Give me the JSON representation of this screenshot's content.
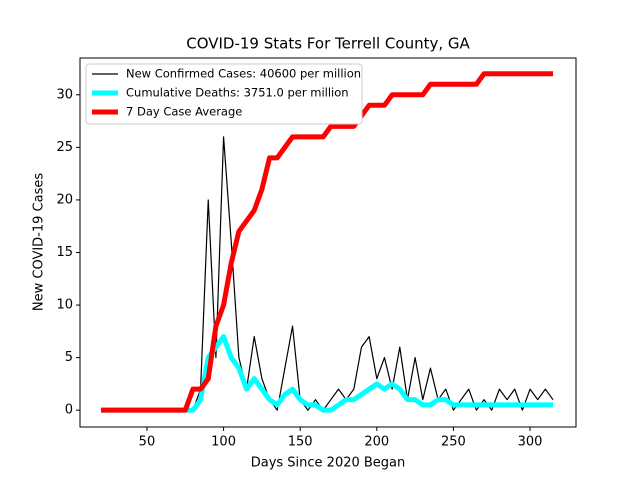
{
  "chart_data": {
    "type": "line",
    "title": "COVID-19 Stats For Terrell County, GA",
    "x_label": "Days Since 2020 Began",
    "y_label": "New COVID-19 Cases",
    "x": [
      20,
      25,
      30,
      35,
      40,
      45,
      50,
      55,
      60,
      65,
      70,
      75,
      80,
      85,
      90,
      95,
      100,
      105,
      110,
      115,
      120,
      125,
      130,
      135,
      140,
      145,
      150,
      155,
      160,
      165,
      170,
      175,
      180,
      185,
      190,
      195,
      200,
      205,
      210,
      215,
      220,
      225,
      230,
      235,
      240,
      245,
      250,
      255,
      260,
      265,
      270,
      275,
      280,
      285,
      290,
      295,
      300,
      305,
      310,
      315
    ],
    "series": [
      {
        "name": "New Confirmed Cases: 40600 per million",
        "color": "black",
        "width": 1.2,
        "values": [
          0,
          0,
          0,
          0,
          0,
          0,
          0,
          0,
          0,
          0,
          0,
          0,
          0,
          2,
          20,
          5,
          26,
          16,
          5,
          2,
          7,
          3,
          1,
          0,
          4,
          8,
          1,
          0,
          1,
          0,
          1,
          2,
          1,
          2,
          6,
          7,
          3,
          5,
          2,
          6,
          1,
          5,
          1,
          4,
          1,
          2,
          0,
          1,
          2,
          0,
          1,
          0,
          2,
          1,
          2,
          0,
          2,
          1,
          2,
          1
        ]
      },
      {
        "name": "Cumulative Deaths: 3751.0 per million",
        "color": "cyan",
        "width": 5,
        "values": [
          0,
          0,
          0,
          0,
          0,
          0,
          0,
          0,
          0,
          0,
          0,
          0,
          0,
          1,
          5,
          6,
          7,
          5,
          4,
          2,
          3,
          2,
          1,
          0.5,
          1.5,
          2,
          1,
          0.5,
          0.5,
          0,
          0,
          0.5,
          1,
          1,
          1.5,
          2,
          2.5,
          2,
          2.5,
          2,
          1,
          1,
          0.5,
          0.5,
          1,
          1,
          0.5,
          0.5,
          0.5,
          0.5,
          0.5,
          0.5,
          0.5,
          0.5,
          0.5,
          0.5,
          0.5,
          0.5,
          0.5,
          0.5
        ]
      },
      {
        "name": "7 Day Case Average",
        "color": "red",
        "width": 5,
        "values": [
          0,
          0,
          0,
          0,
          0,
          0,
          0,
          0,
          0,
          0,
          0,
          0,
          2,
          2,
          3,
          8,
          10,
          14,
          17,
          18,
          19,
          21,
          24,
          24,
          25,
          26,
          26,
          26,
          26,
          26,
          27,
          27,
          27,
          27,
          28,
          29,
          29,
          29,
          30,
          30,
          30,
          30,
          30,
          31,
          31,
          31,
          31,
          31,
          31,
          31,
          32,
          32,
          32,
          32,
          32,
          32,
          32,
          32,
          32,
          32
        ]
      }
    ],
    "xlim": [
      6.3,
      330
    ],
    "ylim": [
      -1.6,
      33.5
    ],
    "xticks": [
      50,
      100,
      150,
      200,
      250,
      300
    ],
    "yticks": [
      0,
      5,
      10,
      15,
      20,
      25,
      30
    ],
    "legend": "upper left",
    "grid": false
  }
}
